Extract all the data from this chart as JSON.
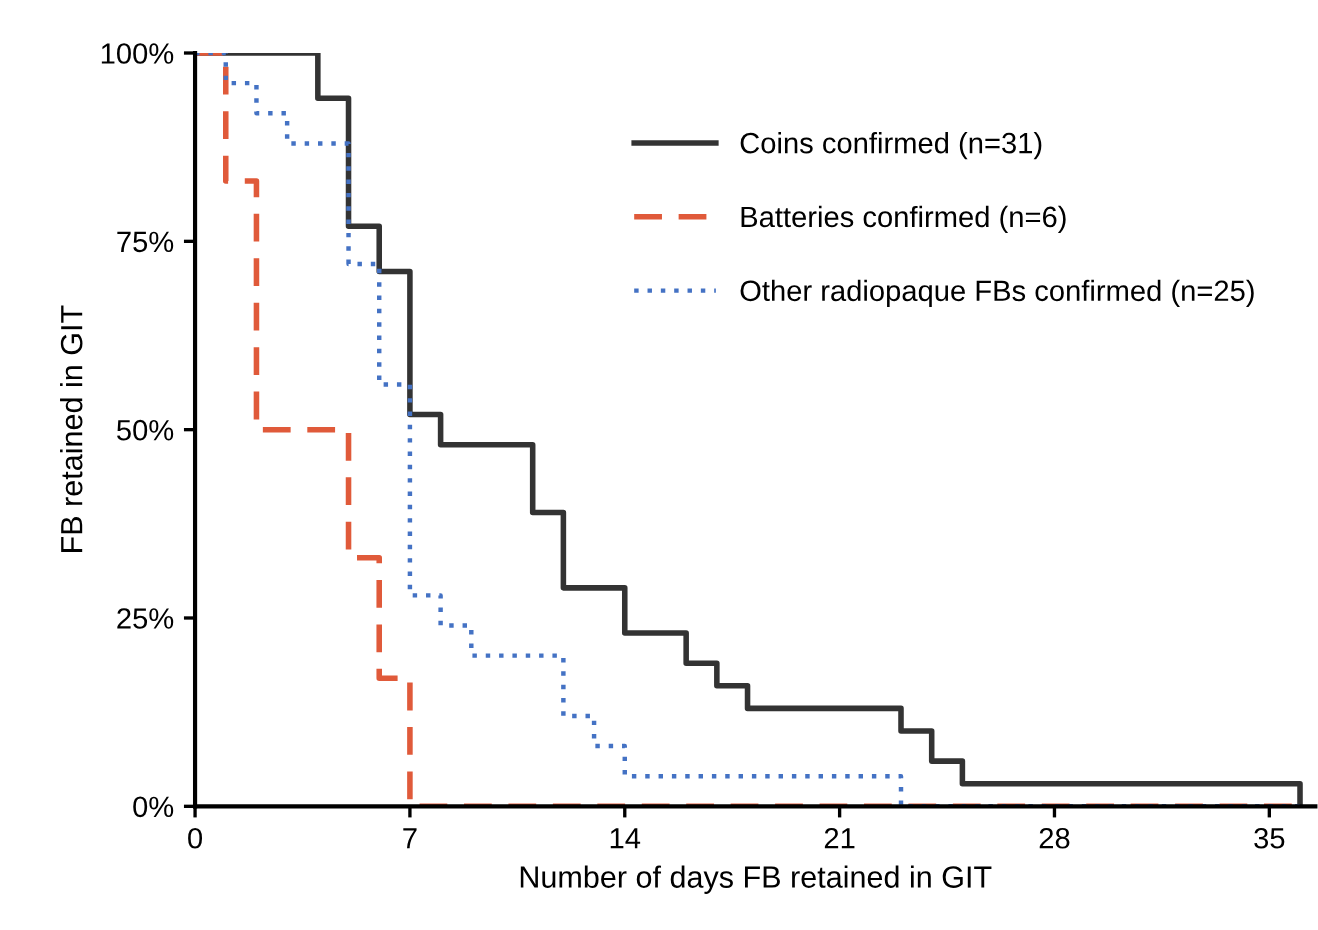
{
  "chart_data": {
    "type": "step",
    "xlabel": "Number of days FB retained in GIT",
    "ylabel": "FB retained in GIT",
    "xlim": [
      0,
      36.5
    ],
    "ylim": [
      0,
      100
    ],
    "xticks": [
      0,
      7,
      14,
      21,
      28,
      35
    ],
    "yticks": [
      {
        "value": 0,
        "label": "0%"
      },
      {
        "value": 25,
        "label": "25%"
      },
      {
        "value": 50,
        "label": "50%"
      },
      {
        "value": 75,
        "label": "75%"
      },
      {
        "value": 100,
        "label": "100%"
      }
    ],
    "grid": false,
    "legend": "top right",
    "marker": "none",
    "series": [
      {
        "name": "Coins confirmed (n=31)",
        "color": "#333333",
        "line_style": "solid",
        "x": [
          0,
          4,
          5,
          6,
          7,
          8,
          11,
          12,
          14,
          16,
          17,
          18,
          23,
          24,
          25,
          36
        ],
        "values": [
          100,
          94,
          77,
          71,
          52,
          48,
          39,
          29,
          23,
          19,
          16,
          13,
          10,
          6,
          3,
          0
        ]
      },
      {
        "name": "Batteries confirmed (n=6)",
        "color": "#e05a3a",
        "line_style": "dashed",
        "x": [
          0,
          1,
          2,
          5,
          6,
          7,
          36
        ],
        "values": [
          100,
          83,
          50,
          33,
          17,
          0,
          0
        ]
      },
      {
        "name": "Other radiopaque FBs confirmed (n=25)",
        "color": "#4472c4",
        "line_style": "dotted",
        "x": [
          0,
          1,
          2,
          3,
          5,
          6,
          7,
          8,
          9,
          12,
          13,
          14,
          23,
          36
        ],
        "values": [
          100,
          96,
          92,
          88,
          72,
          56,
          28,
          24,
          20,
          12,
          8,
          4,
          0,
          0
        ]
      }
    ]
  }
}
